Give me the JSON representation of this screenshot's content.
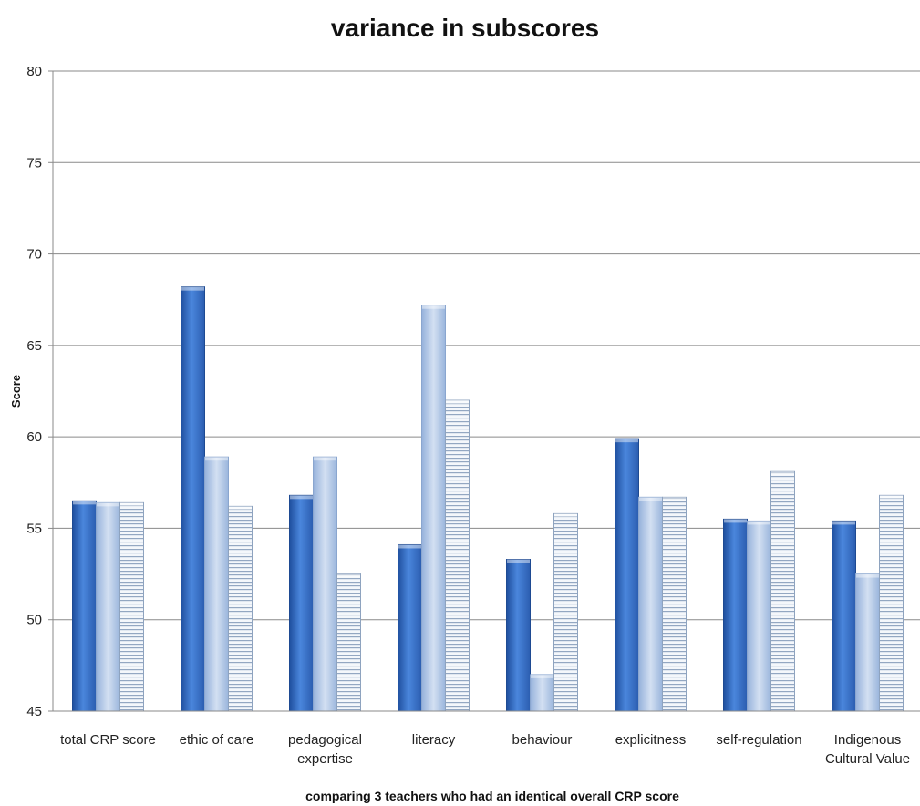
{
  "chart_data": {
    "type": "bar",
    "title": "variance in subscores",
    "xlabel": "comparing 3 teachers who had an identical overall CRP score",
    "ylabel": "Score",
    "ylim": [
      45,
      80
    ],
    "yticks": [
      45,
      50,
      55,
      60,
      65,
      70,
      75,
      80
    ],
    "grid": true,
    "legend": "none",
    "categories": [
      [
        "total CRP score"
      ],
      [
        "ethic of care"
      ],
      [
        "pedagogical",
        "expertise"
      ],
      [
        "literacy"
      ],
      [
        "behaviour"
      ],
      [
        "explicitness"
      ],
      [
        "self-regulation"
      ],
      [
        "Indigenous",
        "Cultural Value"
      ]
    ],
    "series": [
      {
        "values": [
          56.5,
          68.2,
          56.8,
          54.1,
          53.3,
          59.9,
          55.5,
          55.4
        ],
        "color": "#3a72c8",
        "style": "solid"
      },
      {
        "values": [
          56.4,
          58.9,
          58.9,
          67.2,
          47.0,
          56.7,
          55.4,
          52.5
        ],
        "color": "#b4c8e6",
        "style": "light"
      },
      {
        "values": [
          56.4,
          56.2,
          52.5,
          62.0,
          55.8,
          56.7,
          58.1,
          56.8
        ],
        "color": "#9fb3cc",
        "style": "striped"
      }
    ]
  }
}
